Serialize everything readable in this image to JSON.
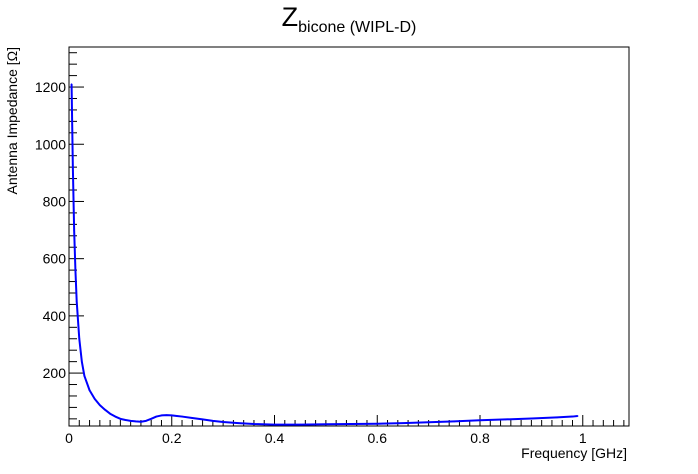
{
  "chart_data": {
    "type": "line",
    "title": {
      "main": "Z",
      "subscript": "bicone",
      "note": " (WIPL-D)"
    },
    "xlabel": "Frequency [GHz]",
    "ylabel": "Antenna Impedance [Ω]",
    "xlim": [
      0,
      1.09
    ],
    "ylim": [
      15,
      1340
    ],
    "x_ticks": [
      0,
      0.2,
      0.4,
      0.6,
      0.8,
      1
    ],
    "x_tick_labels": [
      "0",
      "0.2",
      "0.4",
      "0.6",
      "0.8",
      "1"
    ],
    "y_ticks": [
      200,
      400,
      600,
      800,
      1000,
      1200
    ],
    "y_tick_labels": [
      "200",
      "400",
      "600",
      "800",
      "1000",
      "1200"
    ],
    "grid": false,
    "legend": "none",
    "line_color": "#0000ff",
    "series": [
      {
        "x": [
          0.005,
          0.0075,
          0.01,
          0.0125,
          0.015,
          0.02,
          0.025,
          0.03,
          0.04,
          0.05,
          0.06,
          0.07,
          0.08,
          0.09,
          0.1,
          0.11,
          0.12,
          0.13,
          0.14,
          0.15,
          0.16,
          0.17,
          0.18,
          0.19,
          0.2,
          0.21,
          0.22,
          0.24,
          0.26,
          0.28,
          0.3,
          0.33,
          0.36,
          0.4,
          0.45,
          0.5,
          0.55,
          0.6,
          0.65,
          0.7,
          0.75,
          0.8,
          0.85,
          0.9,
          0.95,
          0.98,
          0.99
        ],
        "y": [
          1210,
          920,
          700,
          560,
          450,
          320,
          240,
          190,
          140,
          110,
          88,
          72,
          58,
          48,
          40,
          36,
          33,
          31,
          30,
          33,
          40,
          48,
          52,
          53,
          52,
          50,
          48,
          43,
          38,
          33,
          29,
          25,
          22,
          20,
          20,
          21,
          22,
          23,
          25,
          28,
          31,
          35,
          38,
          41,
          45,
          48,
          50
        ]
      }
    ]
  }
}
